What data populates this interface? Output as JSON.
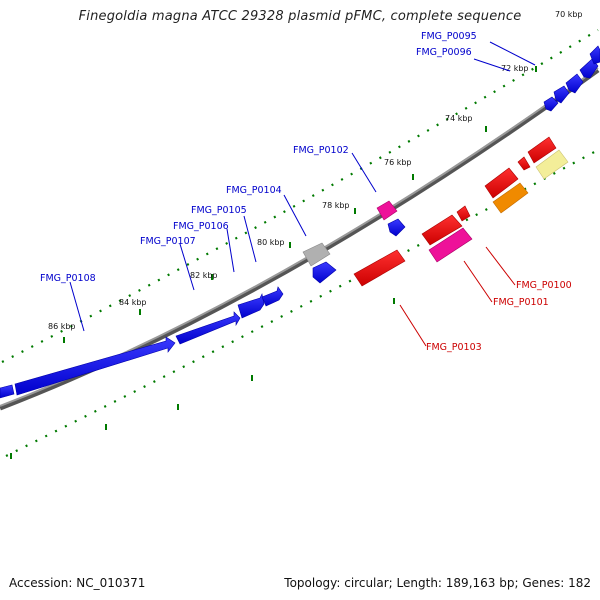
{
  "title": "Finegoldia magna ATCC 29328 plasmid pFMC, complete sequence",
  "accession": "Accession: NC_010371",
  "summary": "Topology: circular; Length: 189,163 bp; Genes: 182",
  "colors": {
    "forward": "#0000ee",
    "reverse": "#ee0000",
    "magenta": "#ee1199",
    "gray": "#aaaaaa",
    "orange": "#f08a00",
    "yellow": "#f3ee99",
    "ticks": "#007a00",
    "backbone": "#888888"
  },
  "tick_labels": [
    "70 kbp",
    "72 kbp",
    "74 kbp",
    "76 kbp",
    "78 kbp",
    "80 kbp",
    "82 kbp",
    "84 kbp",
    "86 kbp"
  ],
  "forward_genes": [
    "FMG_P0095",
    "FMG_P0096",
    "FMG_P0102",
    "FMG_P0104",
    "FMG_P0105",
    "FMG_P0106",
    "FMG_P0107",
    "FMG_P0108"
  ],
  "reverse_genes": [
    "FMG_P0100",
    "FMG_P0101",
    "FMG_P0103"
  ]
}
